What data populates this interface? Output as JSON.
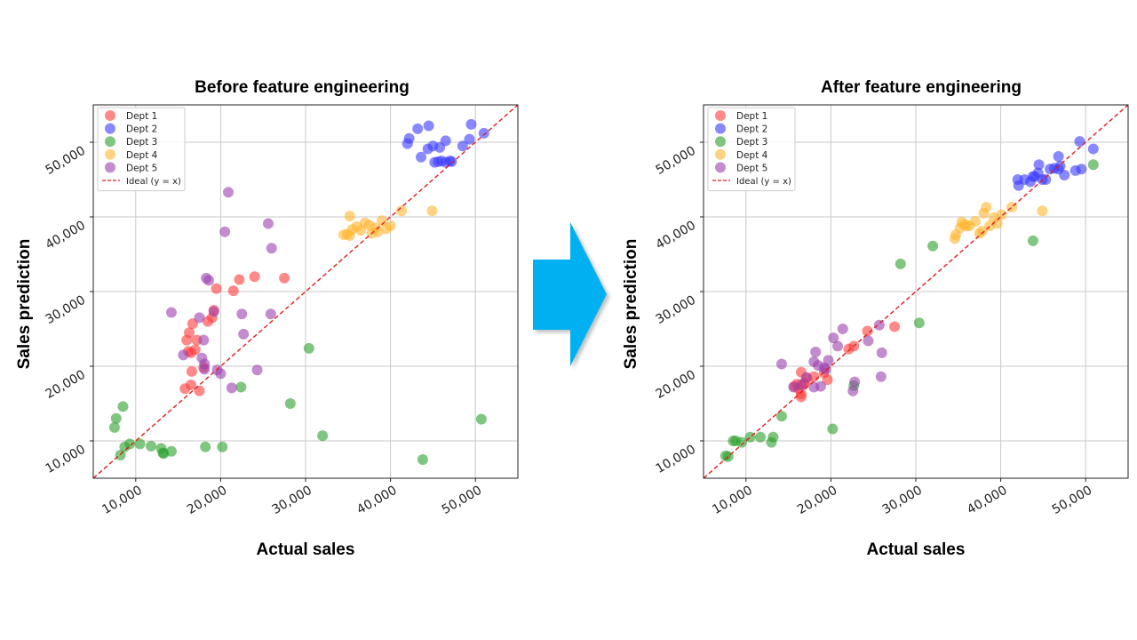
{
  "figure": {
    "arrow_color": "#00b0f0"
  },
  "chart_data": [
    {
      "type": "scatter",
      "title": "Before feature engineering",
      "xlabel": "Actual sales",
      "ylabel": "Sales prediction",
      "xlim": [
        5000,
        55000
      ],
      "ylim": [
        5000,
        55000
      ],
      "xticks": [
        10000,
        20000,
        30000,
        40000,
        50000
      ],
      "yticks": [
        10000,
        20000,
        30000,
        40000,
        50000
      ],
      "tick_labels": [
        "10,000",
        "20,000",
        "30,000",
        "40,000",
        "50,000"
      ],
      "grid": true,
      "legend": "top-left",
      "ideal_line": {
        "label": "Ideal (y = x)",
        "color": "#e41a1c",
        "style": "dashed"
      },
      "series": [
        {
          "name": "Dept 1",
          "color": "#ff3b3b",
          "points": [
            [
              15800,
              17000
            ],
            [
              16500,
              17500
            ],
            [
              17500,
              16700
            ],
            [
              16600,
              19300
            ],
            [
              18000,
              19800
            ],
            [
              16200,
              22000
            ],
            [
              16500,
              21800
            ],
            [
              17000,
              22200
            ],
            [
              16000,
              23500
            ],
            [
              17200,
              23500
            ],
            [
              16300,
              24500
            ],
            [
              16700,
              25700
            ],
            [
              18500,
              26000
            ],
            [
              19000,
              26500
            ],
            [
              19200,
              27500
            ],
            [
              19500,
              30400
            ],
            [
              21500,
              30100
            ],
            [
              22200,
              31600
            ],
            [
              24000,
              32000
            ],
            [
              27500,
              31800
            ]
          ]
        },
        {
          "name": "Dept 2",
          "color": "#3b3bff",
          "points": [
            [
              42000,
              49800
            ],
            [
              42200,
              50500
            ],
            [
              43200,
              51800
            ],
            [
              44500,
              52200
            ],
            [
              43600,
              48000
            ],
            [
              44400,
              49100
            ],
            [
              45000,
              49500
            ],
            [
              45800,
              49300
            ],
            [
              45200,
              47300
            ],
            [
              45600,
              47400
            ],
            [
              46000,
              47500
            ],
            [
              46500,
              47300
            ],
            [
              47000,
              47500
            ],
            [
              47200,
              47400
            ],
            [
              46500,
              50200
            ],
            [
              48500,
              49500
            ],
            [
              49300,
              50400
            ],
            [
              49500,
              52400
            ],
            [
              51000,
              51200
            ]
          ]
        },
        {
          "name": "Dept 3",
          "color": "#2ca02c",
          "points": [
            [
              7500,
              11800
            ],
            [
              7700,
              13000
            ],
            [
              8500,
              14600
            ],
            [
              8200,
              8100
            ],
            [
              8700,
              9200
            ],
            [
              9300,
              9600
            ],
            [
              10500,
              9600
            ],
            [
              11800,
              9300
            ],
            [
              13000,
              9000
            ],
            [
              13200,
              8400
            ],
            [
              13300,
              8300
            ],
            [
              14200,
              8600
            ],
            [
              18200,
              9200
            ],
            [
              20200,
              9200
            ],
            [
              22400,
              17200
            ],
            [
              28200,
              15000
            ],
            [
              30400,
              22400
            ],
            [
              32000,
              10700
            ],
            [
              43800,
              7500
            ],
            [
              50700,
              12900
            ]
          ]
        },
        {
          "name": "Dept 4",
          "color": "#ffb52e",
          "points": [
            [
              34500,
              37600
            ],
            [
              34900,
              37700
            ],
            [
              35200,
              37500
            ],
            [
              35500,
              38300
            ],
            [
              36000,
              38700
            ],
            [
              36500,
              38200
            ],
            [
              37000,
              39200
            ],
            [
              37500,
              38900
            ],
            [
              37800,
              37800
            ],
            [
              38200,
              38500
            ],
            [
              38500,
              38000
            ],
            [
              39000,
              39500
            ],
            [
              39500,
              38400
            ],
            [
              40000,
              38800
            ],
            [
              35200,
              40100
            ],
            [
              41300,
              40800
            ],
            [
              44900,
              40800
            ]
          ]
        },
        {
          "name": "Dept 5",
          "color": "#9b3faf",
          "points": [
            [
              14200,
              27200
            ],
            [
              15600,
              21500
            ],
            [
              17500,
              26500
            ],
            [
              18000,
              23500
            ],
            [
              18300,
              31800
            ],
            [
              18600,
              31500
            ],
            [
              19200,
              27300
            ],
            [
              19600,
              19500
            ],
            [
              18100,
              20300
            ],
            [
              17800,
              21100
            ],
            [
              18100,
              19600
            ],
            [
              20000,
              19000
            ],
            [
              21300,
              17100
            ],
            [
              20500,
              38000
            ],
            [
              20900,
              43300
            ],
            [
              22500,
              27000
            ],
            [
              22700,
              24300
            ],
            [
              24300,
              19500
            ],
            [
              25600,
              39100
            ],
            [
              26000,
              35800
            ],
            [
              25900,
              27000
            ]
          ]
        }
      ]
    },
    {
      "type": "scatter",
      "title": "After feature engineering",
      "xlabel": "Actual sales",
      "ylabel": "Sales prediction",
      "xlim": [
        5000,
        55000
      ],
      "ylim": [
        5000,
        55000
      ],
      "xticks": [
        10000,
        20000,
        30000,
        40000,
        50000
      ],
      "yticks": [
        10000,
        20000,
        30000,
        40000,
        50000
      ],
      "tick_labels": [
        "10,000",
        "20,000",
        "30,000",
        "40,000",
        "50,000"
      ],
      "grid": true,
      "legend": "top-left",
      "ideal_line": {
        "label": "Ideal (y = x)",
        "color": "#e41a1c",
        "style": "dashed"
      },
      "series": [
        {
          "name": "Dept 1",
          "color": "#ff3b3b",
          "points": [
            [
              15700,
              17300
            ],
            [
              16000,
              17600
            ],
            [
              16200,
              17000
            ],
            [
              16500,
              16300
            ],
            [
              16500,
              15900
            ],
            [
              16800,
              17600
            ],
            [
              16900,
              17800
            ],
            [
              17200,
              18400
            ],
            [
              16500,
              19200
            ],
            [
              18000,
              18600
            ],
            [
              19200,
              19100
            ],
            [
              19600,
              18200
            ],
            [
              22100,
              22300
            ],
            [
              22700,
              22700
            ],
            [
              24300,
              24700
            ],
            [
              27500,
              25300
            ]
          ]
        },
        {
          "name": "Dept 2",
          "color": "#3b3bff",
          "points": [
            [
              42100,
              44200
            ],
            [
              42000,
              45000
            ],
            [
              42800,
              45000
            ],
            [
              43500,
              44700
            ],
            [
              43800,
              45400
            ],
            [
              44000,
              45400
            ],
            [
              44400,
              45900
            ],
            [
              44500,
              47000
            ],
            [
              44900,
              45000
            ],
            [
              45300,
              45000
            ],
            [
              45800,
              46400
            ],
            [
              46300,
              46500
            ],
            [
              46800,
              46400
            ],
            [
              47000,
              46800
            ],
            [
              46800,
              48100
            ],
            [
              47500,
              45600
            ],
            [
              48800,
              46200
            ],
            [
              49500,
              46400
            ],
            [
              49300,
              50100
            ],
            [
              50900,
              49100
            ]
          ]
        },
        {
          "name": "Dept 3",
          "color": "#2ca02c",
          "points": [
            [
              7600,
              8000
            ],
            [
              7900,
              7900
            ],
            [
              8500,
              10000
            ],
            [
              8800,
              10000
            ],
            [
              9500,
              9800
            ],
            [
              10500,
              10500
            ],
            [
              11700,
              10500
            ],
            [
              13000,
              9800
            ],
            [
              13200,
              10500
            ],
            [
              14200,
              13300
            ],
            [
              20200,
              11600
            ],
            [
              22700,
              17400
            ],
            [
              28200,
              33700
            ],
            [
              30400,
              25800
            ],
            [
              32000,
              36100
            ],
            [
              43800,
              36800
            ],
            [
              50900,
              47000
            ]
          ]
        },
        {
          "name": "Dept 4",
          "color": "#ffb52e",
          "points": [
            [
              34600,
              37100
            ],
            [
              34700,
              37600
            ],
            [
              35200,
              38500
            ],
            [
              35400,
              39300
            ],
            [
              35700,
              39000
            ],
            [
              36000,
              38800
            ],
            [
              36300,
              38800
            ],
            [
              37000,
              39400
            ],
            [
              37500,
              37800
            ],
            [
              37800,
              38100
            ],
            [
              38000,
              40500
            ],
            [
              38300,
              41300
            ],
            [
              38700,
              38800
            ],
            [
              39200,
              39900
            ],
            [
              39600,
              39100
            ],
            [
              40100,
              40300
            ],
            [
              41300,
              41300
            ],
            [
              44900,
              40800
            ]
          ]
        },
        {
          "name": "Dept 5",
          "color": "#9b3faf",
          "points": [
            [
              14200,
              20300
            ],
            [
              15600,
              17200
            ],
            [
              16500,
              17500
            ],
            [
              17100,
              18500
            ],
            [
              18000,
              17200
            ],
            [
              18000,
              20600
            ],
            [
              18200,
              21900
            ],
            [
              18500,
              20100
            ],
            [
              19200,
              19800
            ],
            [
              19700,
              20800
            ],
            [
              20300,
              23800
            ],
            [
              20800,
              22700
            ],
            [
              21400,
              25000
            ],
            [
              22600,
              16700
            ],
            [
              22800,
              17900
            ],
            [
              24400,
              23400
            ],
            [
              25700,
              25500
            ],
            [
              26000,
              21800
            ],
            [
              25900,
              18600
            ],
            [
              18800,
              17300
            ],
            [
              19400,
              19600
            ]
          ]
        }
      ]
    }
  ]
}
